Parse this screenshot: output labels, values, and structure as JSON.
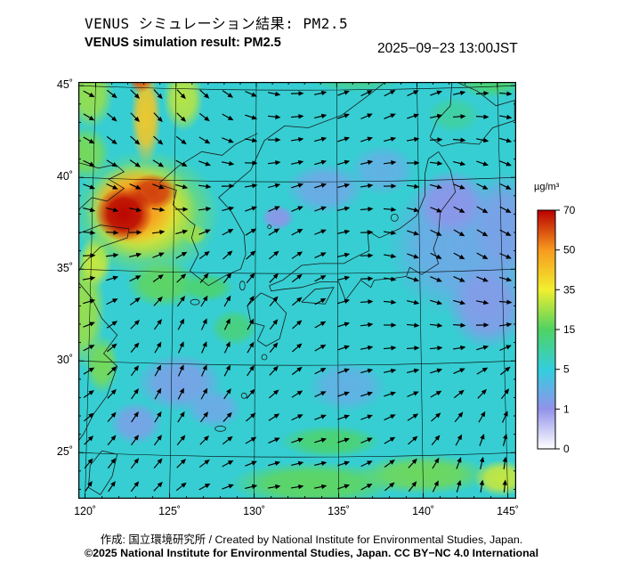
{
  "header": {
    "title_jp": "VENUS シミュレーション結果: PM2.5",
    "title_en": "VENUS simulation result: PM2.5",
    "datetime": "2025−09−23 13:00JST"
  },
  "footer": {
    "credit_line1": "作成:  国立環境研究所 / Created by National Institute for Environmental Studies, Japan.",
    "credit_line2": "©2025 National Institute for Environmental Studies, Japan. CC BY−NC 4.0 International"
  },
  "chart_data": {
    "type": "heatmap",
    "title": "VENUS simulation result: PM2.5",
    "title_jp": "VENUS シミュレーション結果: PM2.5",
    "timestamp": "2025−09−23 13:00JST",
    "variable": "PM2.5 surface concentration",
    "unit": "µg/m³",
    "region": "East Asia (approx. 120–145°E, 23–46°N)",
    "x_axis": {
      "label": "longitude",
      "ticks": [
        "120˚",
        "125˚",
        "130˚",
        "135˚",
        "140˚",
        "145˚"
      ],
      "tick_values": [
        120,
        125,
        130,
        135,
        140,
        145
      ],
      "range": [
        119.6,
        145.5
      ]
    },
    "y_axis": {
      "label": "latitude",
      "ticks": [
        "45˚",
        "40˚",
        "35˚",
        "30˚",
        "25˚"
      ],
      "tick_values": [
        45,
        40,
        35,
        30,
        25
      ],
      "range": [
        22.7,
        45.4
      ]
    },
    "colorbar": {
      "label": "µg/m³",
      "tick_values": [
        70,
        50,
        35,
        15,
        5,
        1,
        0
      ],
      "scale": [
        {
          "v": 0,
          "c": "#ffffff"
        },
        {
          "v": 1,
          "c": "#9292ea"
        },
        {
          "v": 5,
          "c": "#33cede"
        },
        {
          "v": 15,
          "c": "#4fd263"
        },
        {
          "v": 35,
          "c": "#f2ef2e"
        },
        {
          "v": 50,
          "c": "#f79a1e"
        },
        {
          "v": 70,
          "c": "#b80000"
        }
      ]
    },
    "background_value": 6,
    "overlay": "wind vector arrows (surface wind field)",
    "features": [
      {
        "name": "pacific-low",
        "lon": 142.3,
        "lat": 36.5,
        "rx": 4.5,
        "ry": 4.0,
        "v": 2.5
      },
      {
        "name": "pacific-lavender-n",
        "lon": 141.6,
        "lat": 38.8,
        "rx": 2.2,
        "ry": 1.8,
        "v": 1.2
      },
      {
        "name": "pacific-lavender-e",
        "lon": 144.8,
        "lat": 37.5,
        "rx": 2.0,
        "ry": 3.0,
        "v": 2.0
      },
      {
        "name": "pacific-lavender-s",
        "lon": 143.8,
        "lat": 33.2,
        "rx": 2.4,
        "ry": 2.4,
        "v": 1.5
      },
      {
        "name": "japan-sea-low",
        "lon": 134.2,
        "lat": 39.6,
        "rx": 2.4,
        "ry": 1.4,
        "v": 2.5
      },
      {
        "name": "japan-sea-spot",
        "lon": 131.4,
        "lat": 38.0,
        "rx": 1.0,
        "ry": 0.7,
        "v": 1.2
      },
      {
        "name": "n-japan-sea-low",
        "lon": 137.6,
        "lat": 40.6,
        "rx": 2.0,
        "ry": 1.4,
        "v": 3.0
      },
      {
        "name": "ecs-low-1",
        "lon": 125.6,
        "lat": 29.0,
        "rx": 2.6,
        "ry": 1.6,
        "v": 2.0
      },
      {
        "name": "ecs-low-2",
        "lon": 127.6,
        "lat": 27.6,
        "rx": 1.7,
        "ry": 1.1,
        "v": 2.5
      },
      {
        "name": "ecs-low-3",
        "lon": 123.0,
        "lat": 26.8,
        "rx": 1.6,
        "ry": 1.2,
        "v": 2.0
      },
      {
        "name": "s-shikoku-low",
        "lon": 135.5,
        "lat": 28.8,
        "rx": 2.4,
        "ry": 1.4,
        "v": 3.0
      },
      {
        "name": "china-coast-green",
        "lon": 119.9,
        "lat": 33.0,
        "rx": 1.3,
        "ry": 3.2,
        "v": 24
      },
      {
        "name": "shandong-green",
        "lon": 120.6,
        "lat": 35.6,
        "rx": 1.0,
        "ry": 1.4,
        "v": 30
      },
      {
        "name": "zhejiang-green",
        "lon": 121.0,
        "lat": 30.0,
        "rx": 1.0,
        "ry": 1.6,
        "v": 20
      },
      {
        "name": "liaoning-green",
        "lon": 120.0,
        "lat": 41.5,
        "rx": 1.5,
        "ry": 1.5,
        "v": 20
      },
      {
        "name": "yellow-sea-s-green",
        "lon": 124.6,
        "lat": 34.4,
        "rx": 2.2,
        "ry": 1.3,
        "v": 17
      },
      {
        "name": "korea-s-green",
        "lon": 127.2,
        "lat": 34.2,
        "rx": 1.6,
        "ry": 0.8,
        "v": 14
      },
      {
        "name": "korea-w-spot",
        "lon": 126.4,
        "lat": 37.1,
        "rx": 0.8,
        "ry": 0.6,
        "v": 26
      },
      {
        "name": "w-kyushu-green",
        "lon": 128.8,
        "lat": 32.0,
        "rx": 1.4,
        "ry": 1.0,
        "v": 13
      },
      {
        "name": "ne-china-green",
        "lon": 120.3,
        "lat": 44.8,
        "rx": 1.4,
        "ry": 2.0,
        "v": 24
      },
      {
        "name": "manchuria-streak",
        "lon": 125.8,
        "lat": 44.5,
        "rx": 1.2,
        "ry": 1.8,
        "v": 28
      },
      {
        "name": "hotspot-halo",
        "lon": 123.6,
        "lat": 38.2,
        "rx": 4.4,
        "ry": 3.5,
        "v": 22
      },
      {
        "name": "hotspot-yellow",
        "lon": 123.3,
        "lat": 38.4,
        "rx": 3.3,
        "ry": 2.7,
        "v": 37
      },
      {
        "name": "hotspot-orange",
        "lon": 122.9,
        "lat": 38.6,
        "rx": 2.5,
        "ry": 2.1,
        "v": 50
      },
      {
        "name": "hotspot-red-ne",
        "lon": 124.0,
        "lat": 39.4,
        "rx": 1.5,
        "ry": 1.0,
        "v": 62
      },
      {
        "name": "hotspot-core",
        "lon": 122.3,
        "lat": 38.2,
        "rx": 1.7,
        "ry": 1.5,
        "v": 70
      },
      {
        "name": "plume-north",
        "lon": 123.6,
        "lat": 43.5,
        "rx": 0.9,
        "ry": 2.6,
        "v": 42
      },
      {
        "name": "plume-north-tip",
        "lon": 123.3,
        "lat": 45.7,
        "rx": 0.8,
        "ry": 0.9,
        "v": 58
      },
      {
        "name": "bottom-band-w",
        "lon": 133.5,
        "lat": 23.5,
        "rx": 5.0,
        "ry": 1.2,
        "v": 17
      },
      {
        "name": "bottom-band-e",
        "lon": 140.0,
        "lat": 24.0,
        "rx": 4.0,
        "ry": 1.1,
        "v": 19
      },
      {
        "name": "bottom-right-green",
        "lon": 144.6,
        "lat": 23.8,
        "rx": 1.6,
        "ry": 1.0,
        "v": 30
      },
      {
        "name": "bottom-streak",
        "lon": 134.5,
        "lat": 25.8,
        "rx": 3.0,
        "ry": 0.9,
        "v": 14
      },
      {
        "name": "okhotsk-green",
        "lon": 144.0,
        "lat": 45.6,
        "rx": 2.2,
        "ry": 1.1,
        "v": 14
      },
      {
        "name": "primorye-green",
        "lon": 136.0,
        "lat": 45.8,
        "rx": 3.0,
        "ry": 1.0,
        "v": 12
      },
      {
        "name": "hokkaido-patch",
        "lon": 141.8,
        "lat": 43.6,
        "rx": 1.6,
        "ry": 1.0,
        "v": 10
      }
    ]
  }
}
